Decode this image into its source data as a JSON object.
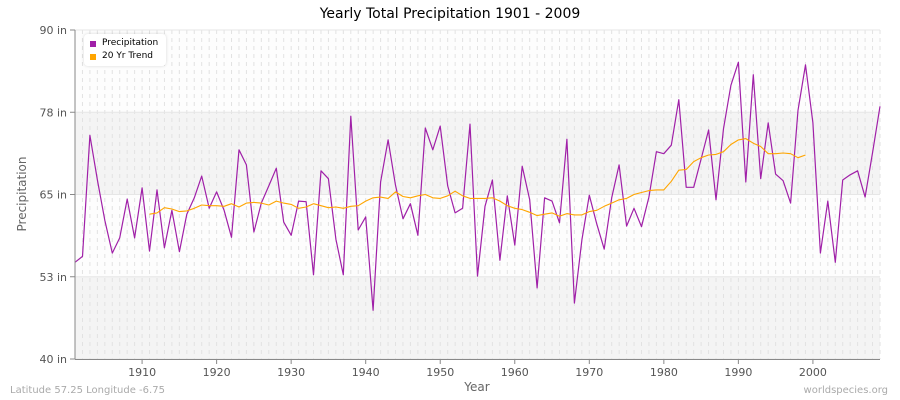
{
  "chart_data": {
    "type": "line",
    "title": "Yearly Total Precipitation 1901 - 2009",
    "xlabel": "Year",
    "ylabel": "Precipitation",
    "xlim": [
      1901,
      2009
    ],
    "ylim": [
      40,
      90
    ],
    "x_ticks": [
      1910,
      1920,
      1930,
      1940,
      1950,
      1960,
      1970,
      1980,
      1990,
      2000
    ],
    "y_ticks": [
      {
        "value": 40,
        "label": "40 in"
      },
      {
        "value": 52.5,
        "label": "53 in"
      },
      {
        "value": 65,
        "label": "65 in"
      },
      {
        "value": 77.5,
        "label": "78 in"
      },
      {
        "value": 90,
        "label": "90 in"
      }
    ],
    "grid": true,
    "legend_placement": "top-left",
    "series": [
      {
        "name": "Precipitation",
        "color": "#a020a8",
        "start_year": 1901,
        "values": [
          54.7,
          55.6,
          74.0,
          67.2,
          61.1,
          56.1,
          58.4,
          64.3,
          58.4,
          66.0,
          56.4,
          65.7,
          56.9,
          62.6,
          56.3,
          62.0,
          64.5,
          67.8,
          62.9,
          65.4,
          62.6,
          58.5,
          71.8,
          69.5,
          59.3,
          63.7,
          66.3,
          69.0,
          60.8,
          58.8,
          64.0,
          63.9,
          52.8,
          68.6,
          67.4,
          58.2,
          52.8,
          76.9,
          59.6,
          61.6,
          47.4,
          66.9,
          73.3,
          66.4,
          61.3,
          63.6,
          58.8,
          75.1,
          71.8,
          75.4,
          66.3,
          62.2,
          62.9,
          75.7,
          52.6,
          63.2,
          67.2,
          55.0,
          64.8,
          57.3,
          69.3,
          64.2,
          50.8,
          64.5,
          64.0,
          60.7,
          73.4,
          48.5,
          58.1,
          64.9,
          60.5,
          56.7,
          64.5,
          69.5,
          60.2,
          62.9,
          60.1,
          64.6,
          71.5,
          71.2,
          72.5,
          79.4,
          66.1,
          66.1,
          70.4,
          74.8,
          64.2,
          75.0,
          81.6,
          85.1,
          66.9,
          83.2,
          67.4,
          75.9,
          68.1,
          67.1,
          63.7,
          77.8,
          84.7,
          75.9,
          56.1,
          64.0,
          54.7,
          67.2,
          68.0,
          68.6,
          64.6,
          71.3,
          78.4
        ]
      },
      {
        "name": "20 Yr Trend",
        "color": "#ffa500",
        "start_year": 1911,
        "values": [
          62.0,
          62.2,
          63.0,
          62.8,
          62.4,
          62.5,
          62.9,
          63.4,
          63.3,
          63.3,
          63.2,
          63.6,
          63.1,
          63.7,
          63.8,
          63.7,
          63.4,
          64.0,
          63.7,
          63.5,
          62.9,
          63.1,
          63.6,
          63.3,
          63.0,
          63.1,
          62.9,
          63.2,
          63.3,
          64.0,
          64.5,
          64.6,
          64.4,
          65.4,
          64.7,
          64.5,
          64.8,
          65.0,
          64.5,
          64.4,
          64.8,
          65.5,
          64.8,
          64.4,
          64.4,
          64.4,
          64.5,
          64.0,
          63.3,
          62.9,
          62.7,
          62.3,
          61.8,
          62.0,
          62.2,
          61.7,
          62.1,
          61.9,
          61.9,
          62.4,
          62.6,
          63.2,
          63.7,
          64.2,
          64.4,
          65.0,
          65.3,
          65.6,
          65.7,
          65.7,
          67.0,
          68.7,
          68.8,
          70.0,
          70.6,
          71.0,
          71.1,
          71.5,
          72.6,
          73.3,
          73.5,
          72.8,
          72.3,
          71.2,
          71.2,
          71.3,
          71.2,
          70.6,
          71.0
        ]
      }
    ]
  },
  "footer": {
    "coords": "Latitude 57.25 Longitude -6.75",
    "site": "worldspecies.org"
  }
}
